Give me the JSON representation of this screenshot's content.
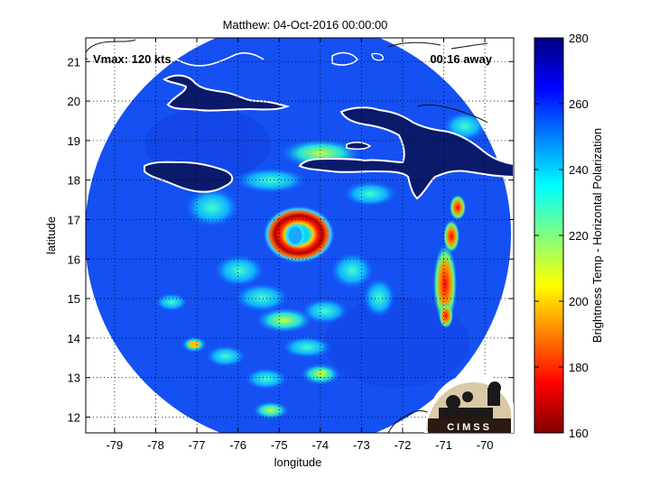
{
  "figure": {
    "title": "Matthew: 04-Oct-2016 00:00:00",
    "vmax_label": "Vmax: 120 kts",
    "time_away_label": "00:16 away",
    "logo_text": "CIMSS"
  },
  "map": {
    "xlabel": "longitude",
    "ylabel": "latitude",
    "xlim": [
      -79.7,
      -69.3
    ],
    "ylim": [
      11.6,
      21.6
    ],
    "xticks": [
      "-79",
      "-78",
      "-77",
      "-76",
      "-75",
      "-74",
      "-73",
      "-72",
      "-71",
      "-70"
    ],
    "yticks": [
      "12",
      "13",
      "14",
      "15",
      "16",
      "17",
      "18",
      "19",
      "20",
      "21"
    ],
    "grid": "dotted",
    "storm_eye": {
      "lon": -74.6,
      "lat": 16.65
    },
    "swath_center": {
      "lon": -74.5,
      "lat": 16.7
    }
  },
  "colorbar": {
    "label": "Brightness Temp - Horizontal Polarization",
    "ticks": [
      "280",
      "260",
      "240",
      "220",
      "200",
      "180",
      "160"
    ],
    "range": [
      160,
      280
    ],
    "colormap": "jet",
    "colors": [
      "#7f0000",
      "#ff0000",
      "#ff8000",
      "#ffff00",
      "#80ff80",
      "#00ffff",
      "#0080ff",
      "#0000ff",
      "#00007f"
    ]
  }
}
